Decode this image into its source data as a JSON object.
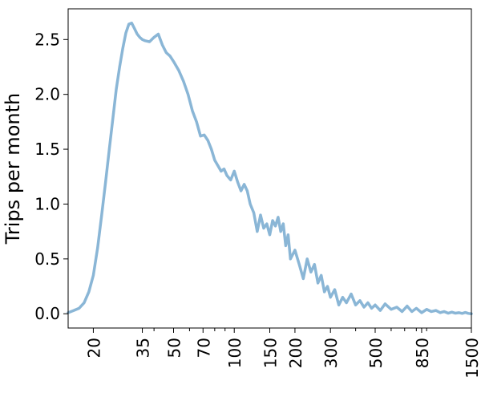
{
  "chart_data": {
    "type": "line",
    "title": "",
    "xlabel": "",
    "ylabel": "Trips per month",
    "x_scale": "log",
    "xlim": [
      15,
      1500
    ],
    "ylim": [
      -0.13,
      2.78
    ],
    "grid": false,
    "legend": "none",
    "line_color": "#8ab6d6",
    "x_ticks": [
      {
        "value": 20,
        "label": "20"
      },
      {
        "value": 35,
        "label": "35"
      },
      {
        "value": 50,
        "label": "50"
      },
      {
        "value": 70,
        "label": "70"
      },
      {
        "value": 100,
        "label": "100"
      },
      {
        "value": 150,
        "label": "150"
      },
      {
        "value": 200,
        "label": "200"
      },
      {
        "value": 300,
        "label": "300"
      },
      {
        "value": 500,
        "label": "500"
      },
      {
        "value": 850,
        "label": "850"
      },
      {
        "value": 1500,
        "label": "1500"
      }
    ],
    "x_minor_ticks": [
      40,
      60,
      80,
      90,
      400,
      600,
      700,
      800,
      900
    ],
    "y_ticks": [
      {
        "value": 0.0,
        "label": "0.0"
      },
      {
        "value": 0.5,
        "label": "0.5"
      },
      {
        "value": 1.0,
        "label": "1.0"
      },
      {
        "value": 1.5,
        "label": "1.5"
      },
      {
        "value": 2.0,
        "label": "2.0"
      },
      {
        "value": 2.5,
        "label": "2.5"
      }
    ],
    "series": [
      {
        "x": [
          15,
          16,
          17,
          18,
          19,
          20,
          21,
          22,
          23,
          24,
          25,
          26,
          27,
          28,
          29,
          30,
          31,
          32,
          33,
          34,
          35,
          36,
          38,
          40,
          42,
          44,
          46,
          48,
          50,
          53,
          56,
          59,
          62,
          65,
          68,
          71,
          74,
          77,
          80,
          83,
          86,
          89,
          92,
          96,
          100,
          104,
          108,
          112,
          116,
          120,
          125,
          130,
          135,
          140,
          145,
          150,
          155,
          160,
          165,
          170,
          175,
          180,
          185,
          190,
          200,
          210,
          220,
          230,
          240,
          250,
          260,
          270,
          280,
          290,
          300,
          315,
          330,
          345,
          360,
          380,
          400,
          420,
          440,
          460,
          480,
          500,
          530,
          560,
          600,
          640,
          680,
          720,
          760,
          800,
          850,
          900,
          950,
          1000,
          1050,
          1100,
          1150,
          1200,
          1250,
          1300,
          1350,
          1400,
          1450,
          1500
        ],
        "y": [
          0.01,
          0.03,
          0.05,
          0.1,
          0.2,
          0.35,
          0.6,
          0.9,
          1.2,
          1.5,
          1.78,
          2.05,
          2.25,
          2.42,
          2.56,
          2.64,
          2.65,
          2.6,
          2.55,
          2.52,
          2.5,
          2.49,
          2.48,
          2.52,
          2.55,
          2.45,
          2.38,
          2.35,
          2.3,
          2.22,
          2.12,
          2.0,
          1.85,
          1.75,
          1.62,
          1.63,
          1.58,
          1.5,
          1.4,
          1.35,
          1.3,
          1.32,
          1.26,
          1.22,
          1.3,
          1.2,
          1.12,
          1.18,
          1.12,
          1.0,
          0.92,
          0.75,
          0.9,
          0.78,
          0.82,
          0.72,
          0.85,
          0.8,
          0.88,
          0.75,
          0.82,
          0.62,
          0.72,
          0.5,
          0.58,
          0.45,
          0.32,
          0.5,
          0.38,
          0.45,
          0.28,
          0.35,
          0.2,
          0.25,
          0.15,
          0.22,
          0.08,
          0.15,
          0.1,
          0.18,
          0.08,
          0.12,
          0.06,
          0.1,
          0.05,
          0.08,
          0.03,
          0.09,
          0.04,
          0.06,
          0.02,
          0.07,
          0.02,
          0.05,
          0.01,
          0.04,
          0.02,
          0.03,
          0.01,
          0.02,
          0.005,
          0.015,
          0.005,
          0.01,
          0.003,
          0.012,
          0.003,
          0.0
        ]
      }
    ]
  }
}
